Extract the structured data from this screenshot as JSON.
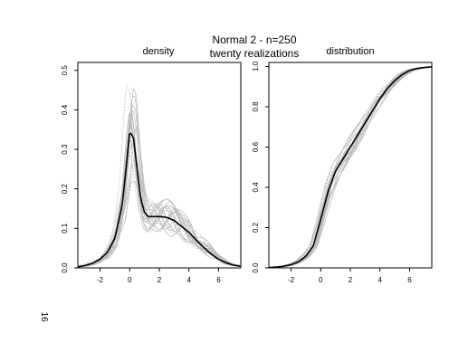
{
  "title_line1": "Normal 2 - n=250",
  "title_line2": "twenty realizations",
  "page_number": "16",
  "chart_data": [
    {
      "type": "line",
      "title": "density",
      "xlim": [
        -3.5,
        7.5
      ],
      "ylim": [
        0,
        0.52
      ],
      "xticks": [
        -2,
        0,
        2,
        4,
        6
      ],
      "yticks": [
        0.0,
        0.1,
        0.2,
        0.3,
        0.4,
        0.5
      ],
      "ytick_labels": [
        "0.0",
        "0.1",
        "0.2",
        "0.3",
        "0.4",
        "0.5"
      ],
      "series": [
        {
          "role": "true",
          "color": "#000000",
          "x": [
            -3.5,
            -3,
            -2.5,
            -2,
            -1.5,
            -1,
            -0.5,
            -0.25,
            0,
            0.25,
            0.5,
            0.75,
            1,
            1.25,
            1.5,
            2,
            2.5,
            3,
            3.5,
            4,
            4.5,
            5,
            5.5,
            6,
            6.5,
            7,
            7.5
          ],
          "y": [
            0.003,
            0.006,
            0.012,
            0.022,
            0.04,
            0.075,
            0.16,
            0.25,
            0.345,
            0.33,
            0.25,
            0.175,
            0.14,
            0.13,
            0.13,
            0.13,
            0.128,
            0.12,
            0.105,
            0.09,
            0.07,
            0.052,
            0.035,
            0.022,
            0.013,
            0.007,
            0.004
          ]
        }
      ],
      "realizations": 20,
      "realization_color": "#b8b8b8"
    },
    {
      "type": "line",
      "title": "distribution",
      "xlim": [
        -3.5,
        7.5
      ],
      "ylim": [
        0,
        1.02
      ],
      "xticks": [
        -2,
        0,
        2,
        4,
        6
      ],
      "yticks": [
        0.0,
        0.2,
        0.4,
        0.6,
        0.8,
        1.0
      ],
      "ytick_labels": [
        "0.0",
        "0.2",
        "0.4",
        "0.6",
        "0.8",
        "1.0"
      ],
      "series": [
        {
          "role": "true",
          "color": "#000000",
          "x": [
            -3.5,
            -3,
            -2.5,
            -2,
            -1.5,
            -1,
            -0.5,
            0,
            0.5,
            1,
            1.5,
            2,
            2.5,
            3,
            3.5,
            4,
            4.5,
            5,
            5.5,
            6,
            6.5,
            7,
            7.5
          ],
          "y": [
            0.002,
            0.004,
            0.008,
            0.016,
            0.03,
            0.058,
            0.11,
            0.24,
            0.38,
            0.48,
            0.54,
            0.6,
            0.66,
            0.72,
            0.78,
            0.84,
            0.89,
            0.93,
            0.96,
            0.98,
            0.99,
            0.995,
            0.998
          ]
        }
      ],
      "realizations": 20,
      "realization_color": "#b8b8b8"
    }
  ]
}
